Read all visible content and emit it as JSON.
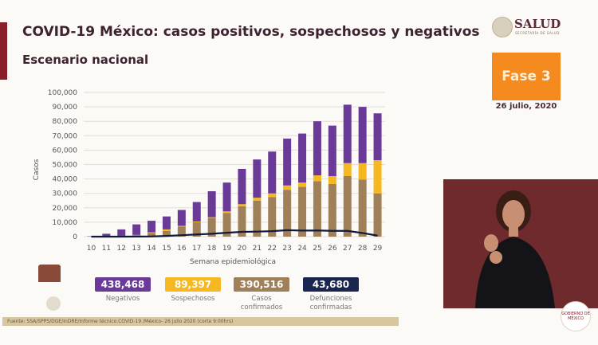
{
  "header": {
    "title": "COVID-19 México: casos positivos, sospechosos y negativos",
    "subtitle": "Escenario nacional"
  },
  "logo": {
    "name": "SALUD",
    "sub": "SECRETARÍA DE SALUD"
  },
  "phase": {
    "label": "Fase 3",
    "date": "26 julio, 2020",
    "color": "#f58a1f"
  },
  "chart_data": {
    "type": "bar",
    "stacked": true,
    "ylabel": "Casos",
    "xlabel": "Semana epidemiológica",
    "ylim": [
      0,
      100000
    ],
    "yticks": [
      "0",
      "10,000",
      "20,000",
      "30,000",
      "40,000",
      "50,000",
      "60,000",
      "70,000",
      "80,000",
      "90,000",
      "100,000"
    ],
    "grid": true,
    "categories": [
      "10",
      "11",
      "12",
      "13",
      "14",
      "15",
      "16",
      "17",
      "18",
      "19",
      "20",
      "21",
      "22",
      "23",
      "24",
      "25",
      "26",
      "27",
      "28",
      "29"
    ],
    "series": [
      {
        "name": "Casos confirmados",
        "color": "#a08058",
        "values": [
          100,
          200,
          500,
          1000,
          2500,
          4000,
          7000,
          10000,
          13000,
          16500,
          21000,
          25000,
          27500,
          32500,
          34500,
          38500,
          36500,
          42000,
          39500,
          30000
        ]
      },
      {
        "name": "Sospechosos",
        "color": "#f5b820",
        "values": [
          0,
          0,
          100,
          200,
          500,
          1000,
          500,
          500,
          500,
          1000,
          1500,
          2000,
          2500,
          3000,
          3000,
          4000,
          5500,
          9000,
          11500,
          23000
        ]
      },
      {
        "name": "Negativos",
        "color": "#6a3a99",
        "values": [
          200,
          1800,
          4400,
          7300,
          8000,
          9000,
          11000,
          13500,
          18000,
          20000,
          24500,
          26500,
          29000,
          32500,
          34000,
          37500,
          35000,
          40500,
          39000,
          32500
        ]
      },
      {
        "name": "Defunciones confirmadas",
        "type": "line",
        "color": "#111a3a",
        "values": [
          0,
          0,
          20,
          50,
          150,
          500,
          1000,
          1500,
          2000,
          2700,
          3300,
          3500,
          3800,
          4500,
          4200,
          4300,
          4000,
          4000,
          2500,
          700
        ]
      }
    ]
  },
  "stats": [
    {
      "value": "438,468",
      "label": "Negativos",
      "color": "#6a3a99"
    },
    {
      "value": "89,397",
      "label": "Sospechosos",
      "color": "#f5b820"
    },
    {
      "value": "390,516",
      "label": "Casos confirmados",
      "color": "#a08058"
    },
    {
      "value": "43,680",
      "label": "Defunciones confirmadas",
      "color": "#1a2550"
    }
  ],
  "footer": {
    "source": "Fuente: SSA/SPPS/DGE/InDRE/Informe técnico.COVID-19 /México- 26 julio 2020 (corte 9:00hrs)"
  },
  "badge": {
    "text": "GOBIERNO DE MÉXICO"
  }
}
